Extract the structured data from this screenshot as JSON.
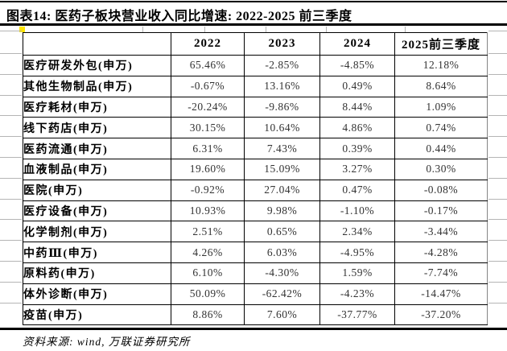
{
  "title": "图表14: 医药子板块营业收入同比增速: 2022-2025 前三季度",
  "table": {
    "columns": [
      "",
      "2022",
      "2023",
      "2024",
      "2025前三季度"
    ],
    "rows": [
      {
        "label": "医疗研发外包(申万)",
        "values": [
          "65.46%",
          "-2.85%",
          "-4.85%",
          "12.18%"
        ]
      },
      {
        "label": "其他生物制品(申万)",
        "values": [
          "-0.67%",
          "13.16%",
          "0.49%",
          "8.64%"
        ]
      },
      {
        "label": "医疗耗材(申万)",
        "values": [
          "-20.24%",
          "-9.86%",
          "8.44%",
          "1.09%"
        ]
      },
      {
        "label": "线下药店(申万)",
        "values": [
          "30.15%",
          "10.64%",
          "4.86%",
          "0.74%"
        ]
      },
      {
        "label": "医药流通(申万)",
        "values": [
          "6.31%",
          "7.43%",
          "0.39%",
          "0.44%"
        ]
      },
      {
        "label": "血液制品(申万)",
        "values": [
          "19.60%",
          "15.09%",
          "3.27%",
          "0.30%"
        ]
      },
      {
        "label": "医院(申万)",
        "values": [
          "-0.92%",
          "27.04%",
          "0.47%",
          "-0.08%"
        ]
      },
      {
        "label": "医疗设备(申万)",
        "values": [
          "10.93%",
          "9.98%",
          "-1.10%",
          "-0.17%"
        ]
      },
      {
        "label": "化学制剂(申万)",
        "values": [
          "2.51%",
          "0.65%",
          "2.34%",
          "-3.44%"
        ]
      },
      {
        "label": "中药Ⅲ(申万)",
        "values": [
          "4.26%",
          "6.03%",
          "-4.95%",
          "-4.28%"
        ]
      },
      {
        "label": "原料药(申万)",
        "values": [
          "6.10%",
          "-4.30%",
          "1.59%",
          "-7.74%"
        ]
      },
      {
        "label": "体外诊断(申万)",
        "values": [
          "50.09%",
          "-62.42%",
          "-4.23%",
          "-14.47%"
        ]
      },
      {
        "label": "疫苗(申万)",
        "values": [
          "8.86%",
          "7.60%",
          "-37.77%",
          "-37.20%"
        ]
      }
    ]
  },
  "footer": {
    "source": "资料来源: wind, 万联证券研究所"
  },
  "colors": {
    "rule": "#000000",
    "value_text": "#333333",
    "highlight_square": "#ffe500",
    "grid_stub": "#b5b5b5"
  },
  "chart_data": {
    "type": "table",
    "title": "图表14: 医药子板块营业收入同比增速: 2022-2025 前三季度",
    "columns": [
      "2022",
      "2023",
      "2024",
      "2025前三季度"
    ],
    "series": [
      {
        "name": "医疗研发外包(申万)",
        "values": [
          65.46,
          -2.85,
          -4.85,
          12.18
        ]
      },
      {
        "name": "其他生物制品(申万)",
        "values": [
          -0.67,
          13.16,
          0.49,
          8.64
        ]
      },
      {
        "name": "医疗耗材(申万)",
        "values": [
          -20.24,
          -9.86,
          8.44,
          1.09
        ]
      },
      {
        "name": "线下药店(申万)",
        "values": [
          30.15,
          10.64,
          4.86,
          0.74
        ]
      },
      {
        "name": "医药流通(申万)",
        "values": [
          6.31,
          7.43,
          0.39,
          0.44
        ]
      },
      {
        "name": "血液制品(申万)",
        "values": [
          19.6,
          15.09,
          3.27,
          0.3
        ]
      },
      {
        "name": "医院(申万)",
        "values": [
          -0.92,
          27.04,
          0.47,
          -0.08
        ]
      },
      {
        "name": "医疗设备(申万)",
        "values": [
          10.93,
          9.98,
          -1.1,
          -0.17
        ]
      },
      {
        "name": "化学制剂(申万)",
        "values": [
          2.51,
          0.65,
          2.34,
          -3.44
        ]
      },
      {
        "name": "中药Ⅲ(申万)",
        "values": [
          4.26,
          6.03,
          -4.95,
          -4.28
        ]
      },
      {
        "name": "原料药(申万)",
        "values": [
          6.1,
          -4.3,
          1.59,
          -7.74
        ]
      },
      {
        "name": "体外诊断(申万)",
        "values": [
          50.09,
          -62.42,
          -4.23,
          -14.47
        ]
      },
      {
        "name": "疫苗(申万)",
        "values": [
          8.86,
          7.6,
          -37.77,
          -37.2
        ]
      }
    ],
    "unit": "%"
  }
}
